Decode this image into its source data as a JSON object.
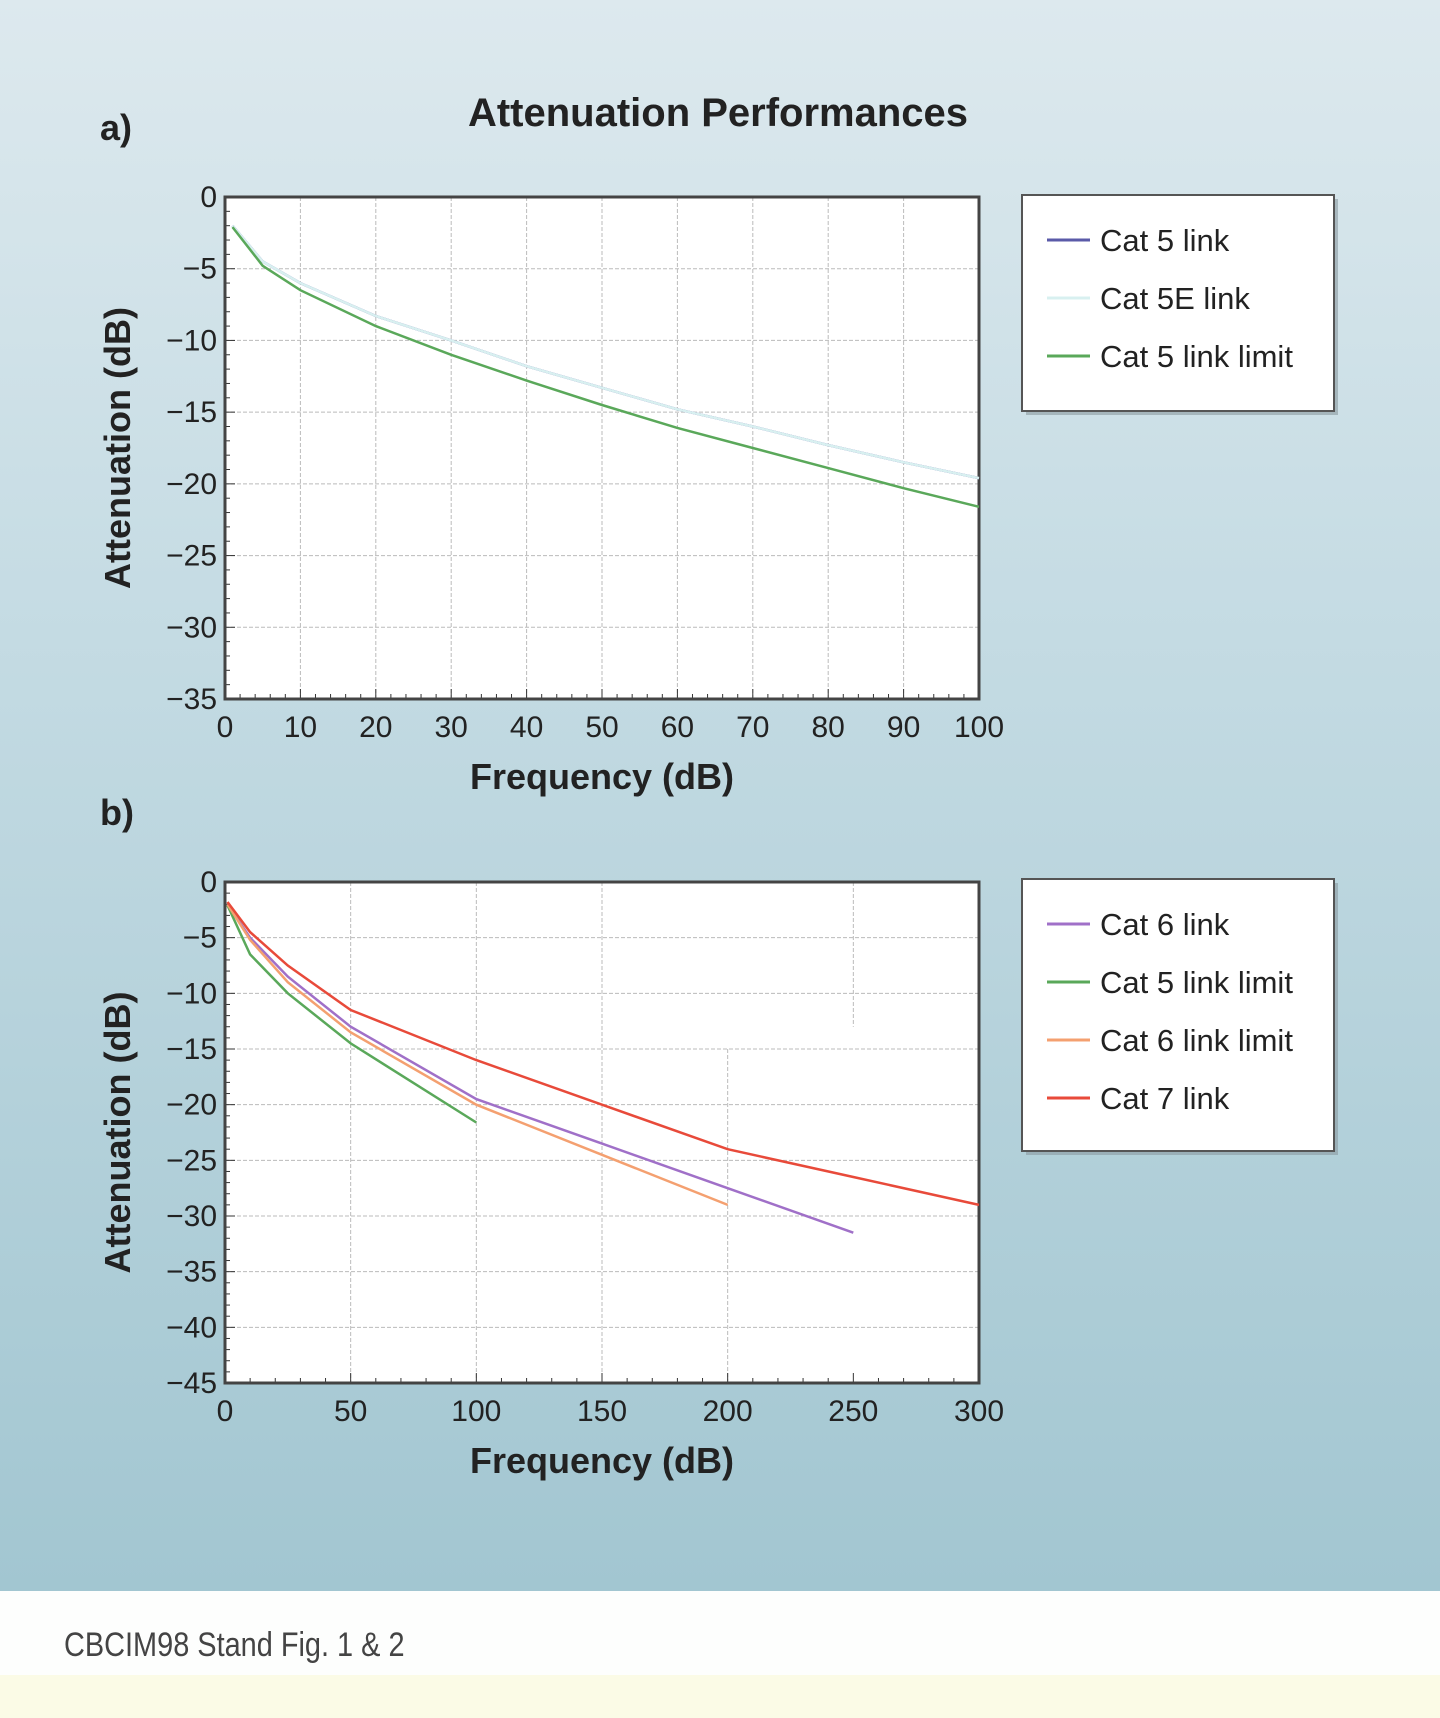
{
  "title": "Attenuation Performances",
  "caption": "CBCIM98 Stand Fig. 1 & 2",
  "chart_data": [
    {
      "panel_label": "a)",
      "type": "line",
      "xlabel": "Frequency (dB)",
      "ylabel": "Attenuation (dB)",
      "xlim": [
        0,
        100
      ],
      "ylim": [
        -35,
        0
      ],
      "xticks": [
        0,
        10,
        20,
        30,
        40,
        50,
        60,
        70,
        80,
        90,
        100
      ],
      "yticks": [
        0,
        -5,
        -10,
        -15,
        -20,
        -25,
        -30,
        -35
      ],
      "grid": true,
      "legend": "right",
      "series": [
        {
          "name": "Cat 5 link",
          "color": "#5a5aa8",
          "x": [
            1,
            5,
            10,
            20,
            30,
            40,
            50,
            60,
            70,
            80,
            90,
            100
          ],
          "y": [
            -2,
            -4.5,
            -6,
            -8.3,
            -10,
            -11.8,
            -13.3,
            -14.8,
            -16,
            -17.3,
            -18.5,
            -19.6
          ]
        },
        {
          "name": "Cat 5E link",
          "color": "#d8f0f0",
          "x": [
            1,
            5,
            10,
            20,
            30,
            40,
            50,
            60,
            70,
            80,
            90,
            100
          ],
          "y": [
            -2,
            -4.5,
            -6,
            -8.3,
            -10,
            -11.8,
            -13.3,
            -14.8,
            -16,
            -17.3,
            -18.5,
            -19.6
          ]
        },
        {
          "name": "Cat 5 link limit",
          "color": "#5aa85a",
          "x": [
            1,
            5,
            10,
            20,
            30,
            40,
            50,
            60,
            70,
            80,
            90,
            100
          ],
          "y": [
            -2.1,
            -4.8,
            -6.5,
            -9,
            -11,
            -12.8,
            -14.5,
            -16.1,
            -17.5,
            -18.9,
            -20.3,
            -21.6
          ]
        }
      ]
    },
    {
      "panel_label": "b)",
      "type": "line",
      "xlabel": "Frequency (dB)",
      "ylabel": "Attenuation (dB)",
      "xlim": [
        0,
        300
      ],
      "ylim": [
        -45,
        0
      ],
      "xticks": [
        0,
        50,
        100,
        150,
        200,
        250,
        300
      ],
      "yticks": [
        0,
        -5,
        -10,
        -15,
        -20,
        -25,
        -30,
        -35,
        -40,
        -45
      ],
      "grid": true,
      "legend": "right",
      "series": [
        {
          "name": "Cat 6 link",
          "color": "#a070c8",
          "x": [
            1,
            10,
            25,
            50,
            100,
            150,
            200,
            250
          ],
          "y": [
            -2,
            -5,
            -8.5,
            -13,
            -19.5,
            -23.5,
            -27.5,
            -31.5
          ]
        },
        {
          "name": "Cat 5 link limit",
          "color": "#5aa85a",
          "x": [
            1,
            10,
            25,
            50,
            100
          ],
          "y": [
            -2.1,
            -6.5,
            -10,
            -14.5,
            -21.6
          ]
        },
        {
          "name": "Cat 6 link limit",
          "color": "#f4a070",
          "x": [
            1,
            10,
            25,
            50,
            100,
            150,
            200
          ],
          "y": [
            -2,
            -5.2,
            -9,
            -13.5,
            -20,
            -24.5,
            -29
          ]
        },
        {
          "name": "Cat 7 link",
          "color": "#e84a3a",
          "x": [
            1,
            10,
            25,
            50,
            100,
            150,
            200,
            250,
            300
          ],
          "y": [
            -1.8,
            -4.5,
            -7.5,
            -11.5,
            -16,
            -20,
            -24,
            -26.5,
            -29
          ]
        }
      ]
    }
  ]
}
